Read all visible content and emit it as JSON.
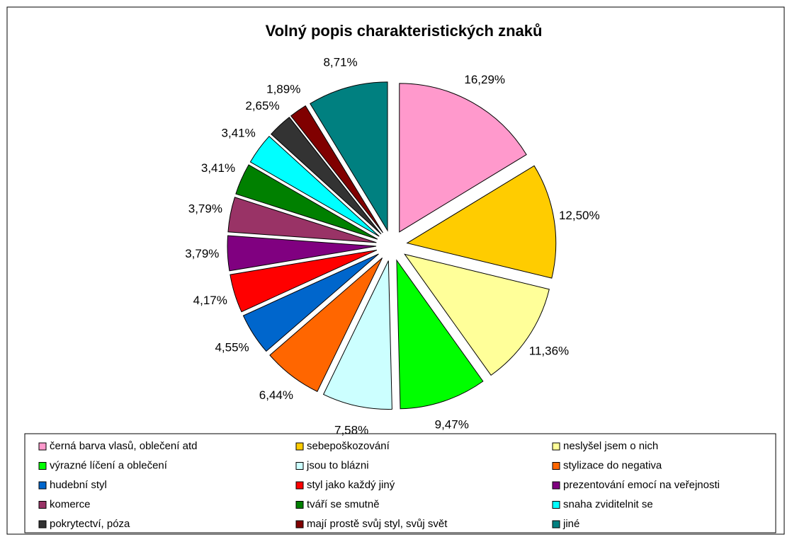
{
  "chart_data": {
    "type": "pie",
    "title": "Volný popis charakteristických znaků",
    "categories": [
      "černá barva vlasů, oblečení atd",
      "sebepoškozování",
      "neslyšel jsem o nich",
      "výrazné líčení a oblečení",
      "jsou to blázni",
      "stylizace do negativa",
      "hudební styl",
      "styl jako každý jiný",
      "prezentování emocí na veřejnosti",
      "komerce",
      "tváří se smutně",
      "snaha zviditelnit se",
      "pokrytectví, póza",
      "mají prostě svůj styl, svůj svět",
      "jiné"
    ],
    "values": [
      16.29,
      12.5,
      11.36,
      9.47,
      7.58,
      6.44,
      4.55,
      4.17,
      3.79,
      3.79,
      3.41,
      3.41,
      2.65,
      1.89,
      8.71
    ],
    "value_labels": [
      "16,29%",
      "12,50%",
      "11,36%",
      "9,47%",
      "7,58%",
      "6,44%",
      "4,55%",
      "4,17%",
      "3,79%",
      "3,79%",
      "3,41%",
      "3,41%",
      "2,65%",
      "1,89%",
      "8,71%"
    ],
    "colors": [
      "#ff99cc",
      "#ffcc00",
      "#ffff99",
      "#00ff00",
      "#ccffff",
      "#ff6600",
      "#0066cc",
      "#ff0000",
      "#800080",
      "#993366",
      "#008000",
      "#00ffff",
      "#333333",
      "#800000",
      "#008080"
    ]
  }
}
